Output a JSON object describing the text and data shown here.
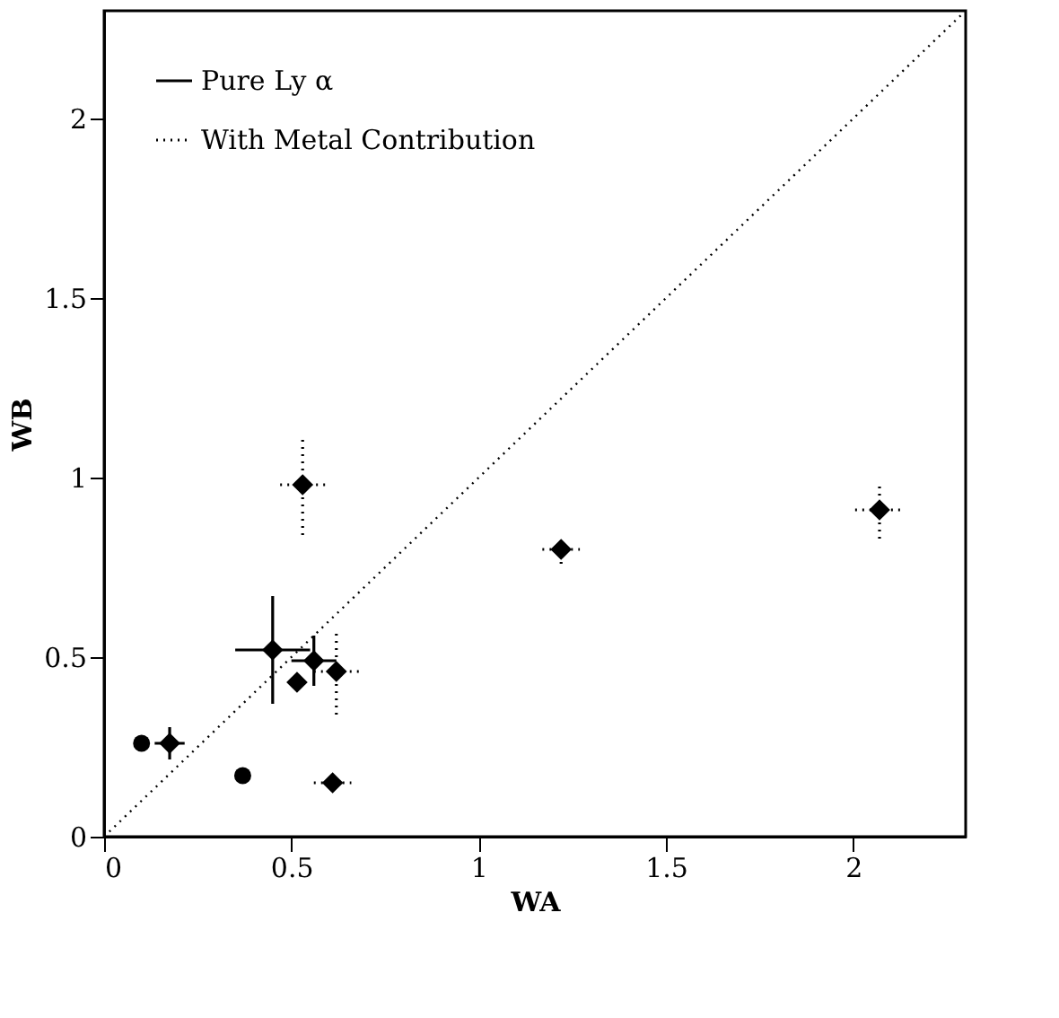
{
  "chart_data": {
    "type": "scatter",
    "xlabel": "WA",
    "ylabel": "WB",
    "xlim": [
      0,
      2.3
    ],
    "ylim": [
      0,
      2.3
    ],
    "xticks": [
      0,
      0.5,
      1,
      1.5,
      2
    ],
    "yticks": [
      0,
      0.5,
      1,
      1.5,
      2
    ],
    "grid": false,
    "legend": "top left",
    "series": [
      {
        "name": "Pure Ly α",
        "color": "#000000",
        "marker": "diamond",
        "line_style": "solid",
        "x": [
          0.45,
          0.56,
          0.515,
          0.175
        ],
        "values": [
          0.52,
          0.49,
          0.43,
          0.26
        ],
        "errors": [
          0.15,
          0.07,
          0.02,
          0.045
        ],
        "xerrors": [
          0.1,
          0.06,
          0.02,
          0.04
        ]
      },
      {
        "name": "With Metal Contribution",
        "color": "#000000",
        "marker": "diamond",
        "line_style": "dotted",
        "x": [
          0.62,
          0.53,
          0.61,
          1.22,
          2.07
        ],
        "values": [
          0.46,
          0.98,
          0.15,
          0.8,
          0.91
        ],
        "errors": [
          0.12,
          0.14,
          0.02,
          0.04,
          0.08
        ],
        "xerrors": [
          0.06,
          0.06,
          0.05,
          0.05,
          0.065
        ]
      },
      {
        "color": "#000000",
        "marker": "circle",
        "x": [
          0.1,
          0.37
        ],
        "values": [
          0.26,
          0.17
        ]
      },
      {
        "type": "line",
        "color": "#000000",
        "marker": "none",
        "line_style": "dotted",
        "x": [
          0,
          2.3
        ],
        "values": [
          0,
          2.3
        ]
      }
    ]
  }
}
